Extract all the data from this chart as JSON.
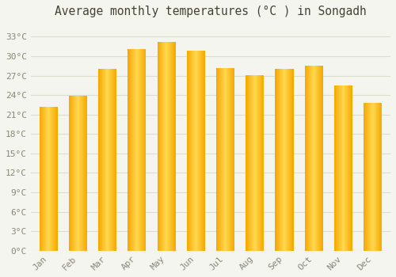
{
  "title": "Average monthly temperatures (°C ) in Songadh",
  "months": [
    "Jan",
    "Feb",
    "Mar",
    "Apr",
    "May",
    "Jun",
    "Jul",
    "Aug",
    "Sep",
    "Oct",
    "Nov",
    "Dec"
  ],
  "values": [
    22.2,
    23.9,
    28.0,
    31.1,
    32.2,
    30.8,
    28.2,
    27.1,
    28.0,
    28.5,
    25.5,
    22.8
  ],
  "bar_color_left": "#F5A800",
  "bar_color_center": "#FFD060",
  "bar_color_right": "#F5A800",
  "background_color": "#f5f5f0",
  "plot_background_color": "#f5f5f0",
  "grid_color": "#ddddcc",
  "tick_label_color": "#888877",
  "title_color": "#444433",
  "ylim": [
    0,
    35
  ],
  "yticks": [
    0,
    3,
    6,
    9,
    12,
    15,
    18,
    21,
    24,
    27,
    30,
    33
  ],
  "ylabel_suffix": "°C",
  "title_fontsize": 10.5,
  "tick_fontsize": 8
}
